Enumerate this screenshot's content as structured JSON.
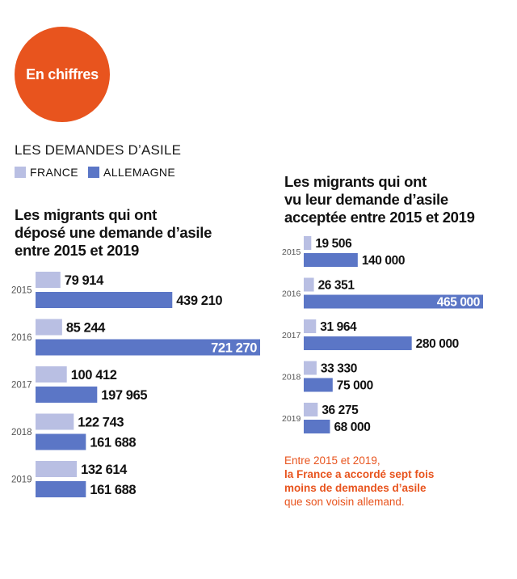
{
  "badge": "En chiffres",
  "section_title": "LES DEMANDES D’ASILE",
  "legend": [
    {
      "label": "FRANCE",
      "color": "#b9bfe3"
    },
    {
      "label": "ALLEMAGNE",
      "color": "#5b76c6"
    }
  ],
  "colors": {
    "france": "#b9bfe3",
    "allemagne": "#5b76c6",
    "accent": "#e8541e"
  },
  "chart_data": [
    {
      "type": "bar",
      "orientation": "horizontal",
      "title_lines": [
        "Les migrants qui ont",
        "déposé une demande d’asile",
        "entre 2015 et 2019"
      ],
      "categories": [
        "2015",
        "2016",
        "2017",
        "2018",
        "2019"
      ],
      "series": [
        {
          "name": "FRANCE",
          "values": [
            79914,
            85244,
            100412,
            122743,
            132614
          ],
          "labels": [
            "79 914",
            "85 244",
            "100 412",
            "122 743",
            "132 614"
          ]
        },
        {
          "name": "ALLEMAGNE",
          "values": [
            439210,
            721270,
            197965,
            161688,
            161688
          ],
          "labels": [
            "439 210",
            "721 270",
            "197 965",
            "161 688",
            "161 688"
          ]
        }
      ],
      "xlim": [
        0,
        721270
      ]
    },
    {
      "type": "bar",
      "orientation": "horizontal",
      "title_lines": [
        "Les migrants qui ont",
        "vu leur demande d’asile",
        "acceptée entre 2015 et 2019"
      ],
      "categories": [
        "2015",
        "2016",
        "2017",
        "2018",
        "2019"
      ],
      "series": [
        {
          "name": "FRANCE",
          "values": [
            19506,
            26351,
            31964,
            33330,
            36275
          ],
          "labels": [
            "19 506",
            "26 351",
            "31 964",
            "33 330",
            "36 275"
          ]
        },
        {
          "name": "ALLEMAGNE",
          "values": [
            140000,
            465000,
            280000,
            75000,
            68000
          ],
          "labels": [
            "140 000",
            "465 000",
            "280 000",
            "75 000",
            "68 000"
          ]
        }
      ],
      "xlim": [
        0,
        465000
      ]
    }
  ],
  "note": {
    "line1": "Entre 2015 et 2019,",
    "bold1": "la France a accordé sept fois",
    "bold2": "moins de demandes d’asile",
    "line2": "que son voisin allemand."
  }
}
